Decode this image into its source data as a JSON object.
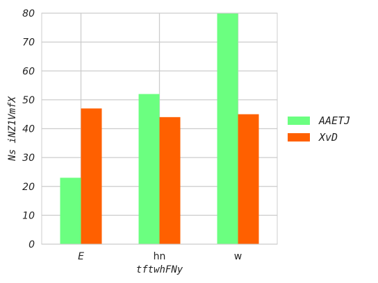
{
  "chart_data": {
    "type": "bar",
    "categories": [
      "E",
      "hn",
      "w"
    ],
    "category_italic": [
      true,
      false,
      false
    ],
    "series": [
      {
        "name": "AAETJ",
        "values": [
          23,
          52,
          80
        ],
        "color": "#6bff80"
      },
      {
        "name": "XvD",
        "values": [
          47,
          44,
          45
        ],
        "color": "#ff6000"
      }
    ],
    "title": "",
    "xlabel": "tftwhFNy",
    "ylabel": "Ns iNZ1VmfX",
    "ylim": [
      0,
      80
    ],
    "yticks": [
      0,
      10,
      20,
      30,
      40,
      50,
      60,
      70,
      80
    ],
    "grid": true,
    "legend_position": "right"
  }
}
